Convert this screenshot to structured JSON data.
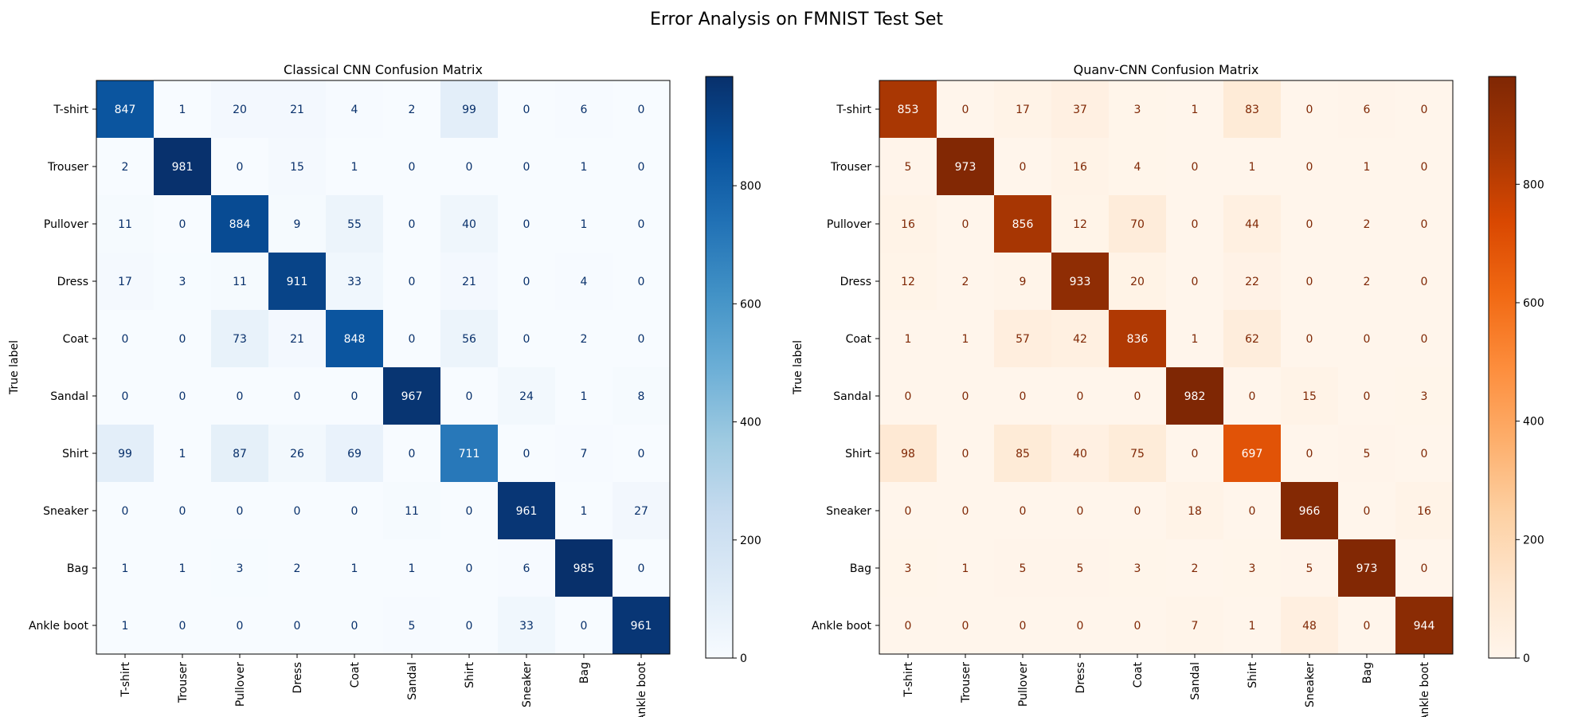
{
  "figure": {
    "suptitle": "Error Analysis on FMNIST Test Set"
  },
  "chart_data": [
    {
      "type": "heatmap",
      "title": "Classical CNN Confusion Matrix",
      "xlabel": "",
      "ylabel": "True label",
      "x_tick_labels": [
        "T-shirt",
        "Trouser",
        "Pullover",
        "Dress",
        "Coat",
        "Sandal",
        "Shirt",
        "Sneaker",
        "Bag",
        "Ankle boot"
      ],
      "y_tick_labels": [
        "T-shirt",
        "Trouser",
        "Pullover",
        "Dress",
        "Coat",
        "Sandal",
        "Shirt",
        "Sneaker",
        "Bag",
        "Ankle boot"
      ],
      "matrix": [
        [
          847,
          1,
          20,
          21,
          4,
          2,
          99,
          0,
          6,
          0
        ],
        [
          2,
          981,
          0,
          15,
          1,
          0,
          0,
          0,
          1,
          0
        ],
        [
          11,
          0,
          884,
          9,
          55,
          0,
          40,
          0,
          1,
          0
        ],
        [
          17,
          3,
          11,
          911,
          33,
          0,
          21,
          0,
          4,
          0
        ],
        [
          0,
          0,
          73,
          21,
          848,
          0,
          56,
          0,
          2,
          0
        ],
        [
          0,
          0,
          0,
          0,
          0,
          967,
          0,
          24,
          1,
          8
        ],
        [
          99,
          1,
          87,
          26,
          69,
          0,
          711,
          0,
          7,
          0
        ],
        [
          0,
          0,
          0,
          0,
          0,
          11,
          0,
          961,
          1,
          27
        ],
        [
          1,
          1,
          3,
          2,
          1,
          1,
          0,
          6,
          985,
          0
        ],
        [
          1,
          0,
          0,
          0,
          0,
          5,
          0,
          33,
          0,
          961
        ]
      ],
      "colormap": "Blues",
      "colorbar_ticks": [
        0,
        200,
        400,
        600,
        800
      ],
      "color_range": [
        0,
        985
      ],
      "colors": [
        "#f7fbff",
        "#deebf7",
        "#c6dbef",
        "#9ecae1",
        "#6baed6",
        "#4292c6",
        "#2171b5",
        "#08519c",
        "#08306b"
      ]
    },
    {
      "type": "heatmap",
      "title": "Quanv-CNN Confusion Matrix",
      "xlabel": "",
      "ylabel": "True label",
      "x_tick_labels": [
        "T-shirt",
        "Trouser",
        "Pullover",
        "Dress",
        "Coat",
        "Sandal",
        "Shirt",
        "Sneaker",
        "Bag",
        "Ankle boot"
      ],
      "y_tick_labels": [
        "T-shirt",
        "Trouser",
        "Pullover",
        "Dress",
        "Coat",
        "Sandal",
        "Shirt",
        "Sneaker",
        "Bag",
        "Ankle boot"
      ],
      "matrix": [
        [
          853,
          0,
          17,
          37,
          3,
          1,
          83,
          0,
          6,
          0
        ],
        [
          5,
          973,
          0,
          16,
          4,
          0,
          1,
          0,
          1,
          0
        ],
        [
          16,
          0,
          856,
          12,
          70,
          0,
          44,
          0,
          2,
          0
        ],
        [
          12,
          2,
          9,
          933,
          20,
          0,
          22,
          0,
          2,
          0
        ],
        [
          1,
          1,
          57,
          42,
          836,
          1,
          62,
          0,
          0,
          0
        ],
        [
          0,
          0,
          0,
          0,
          0,
          982,
          0,
          15,
          0,
          3
        ],
        [
          98,
          0,
          85,
          40,
          75,
          0,
          697,
          0,
          5,
          0
        ],
        [
          0,
          0,
          0,
          0,
          0,
          18,
          0,
          966,
          0,
          16
        ],
        [
          3,
          1,
          5,
          5,
          3,
          2,
          3,
          5,
          973,
          0
        ],
        [
          0,
          0,
          0,
          0,
          0,
          7,
          1,
          48,
          0,
          944
        ]
      ],
      "colormap": "Oranges",
      "colorbar_ticks": [
        0,
        200,
        400,
        600,
        800
      ],
      "color_range": [
        0,
        982
      ],
      "colors": [
        "#fff5eb",
        "#fee6ce",
        "#fdd0a2",
        "#fdae6b",
        "#fd8d3c",
        "#f16913",
        "#d94801",
        "#a63603",
        "#7f2704"
      ]
    }
  ]
}
